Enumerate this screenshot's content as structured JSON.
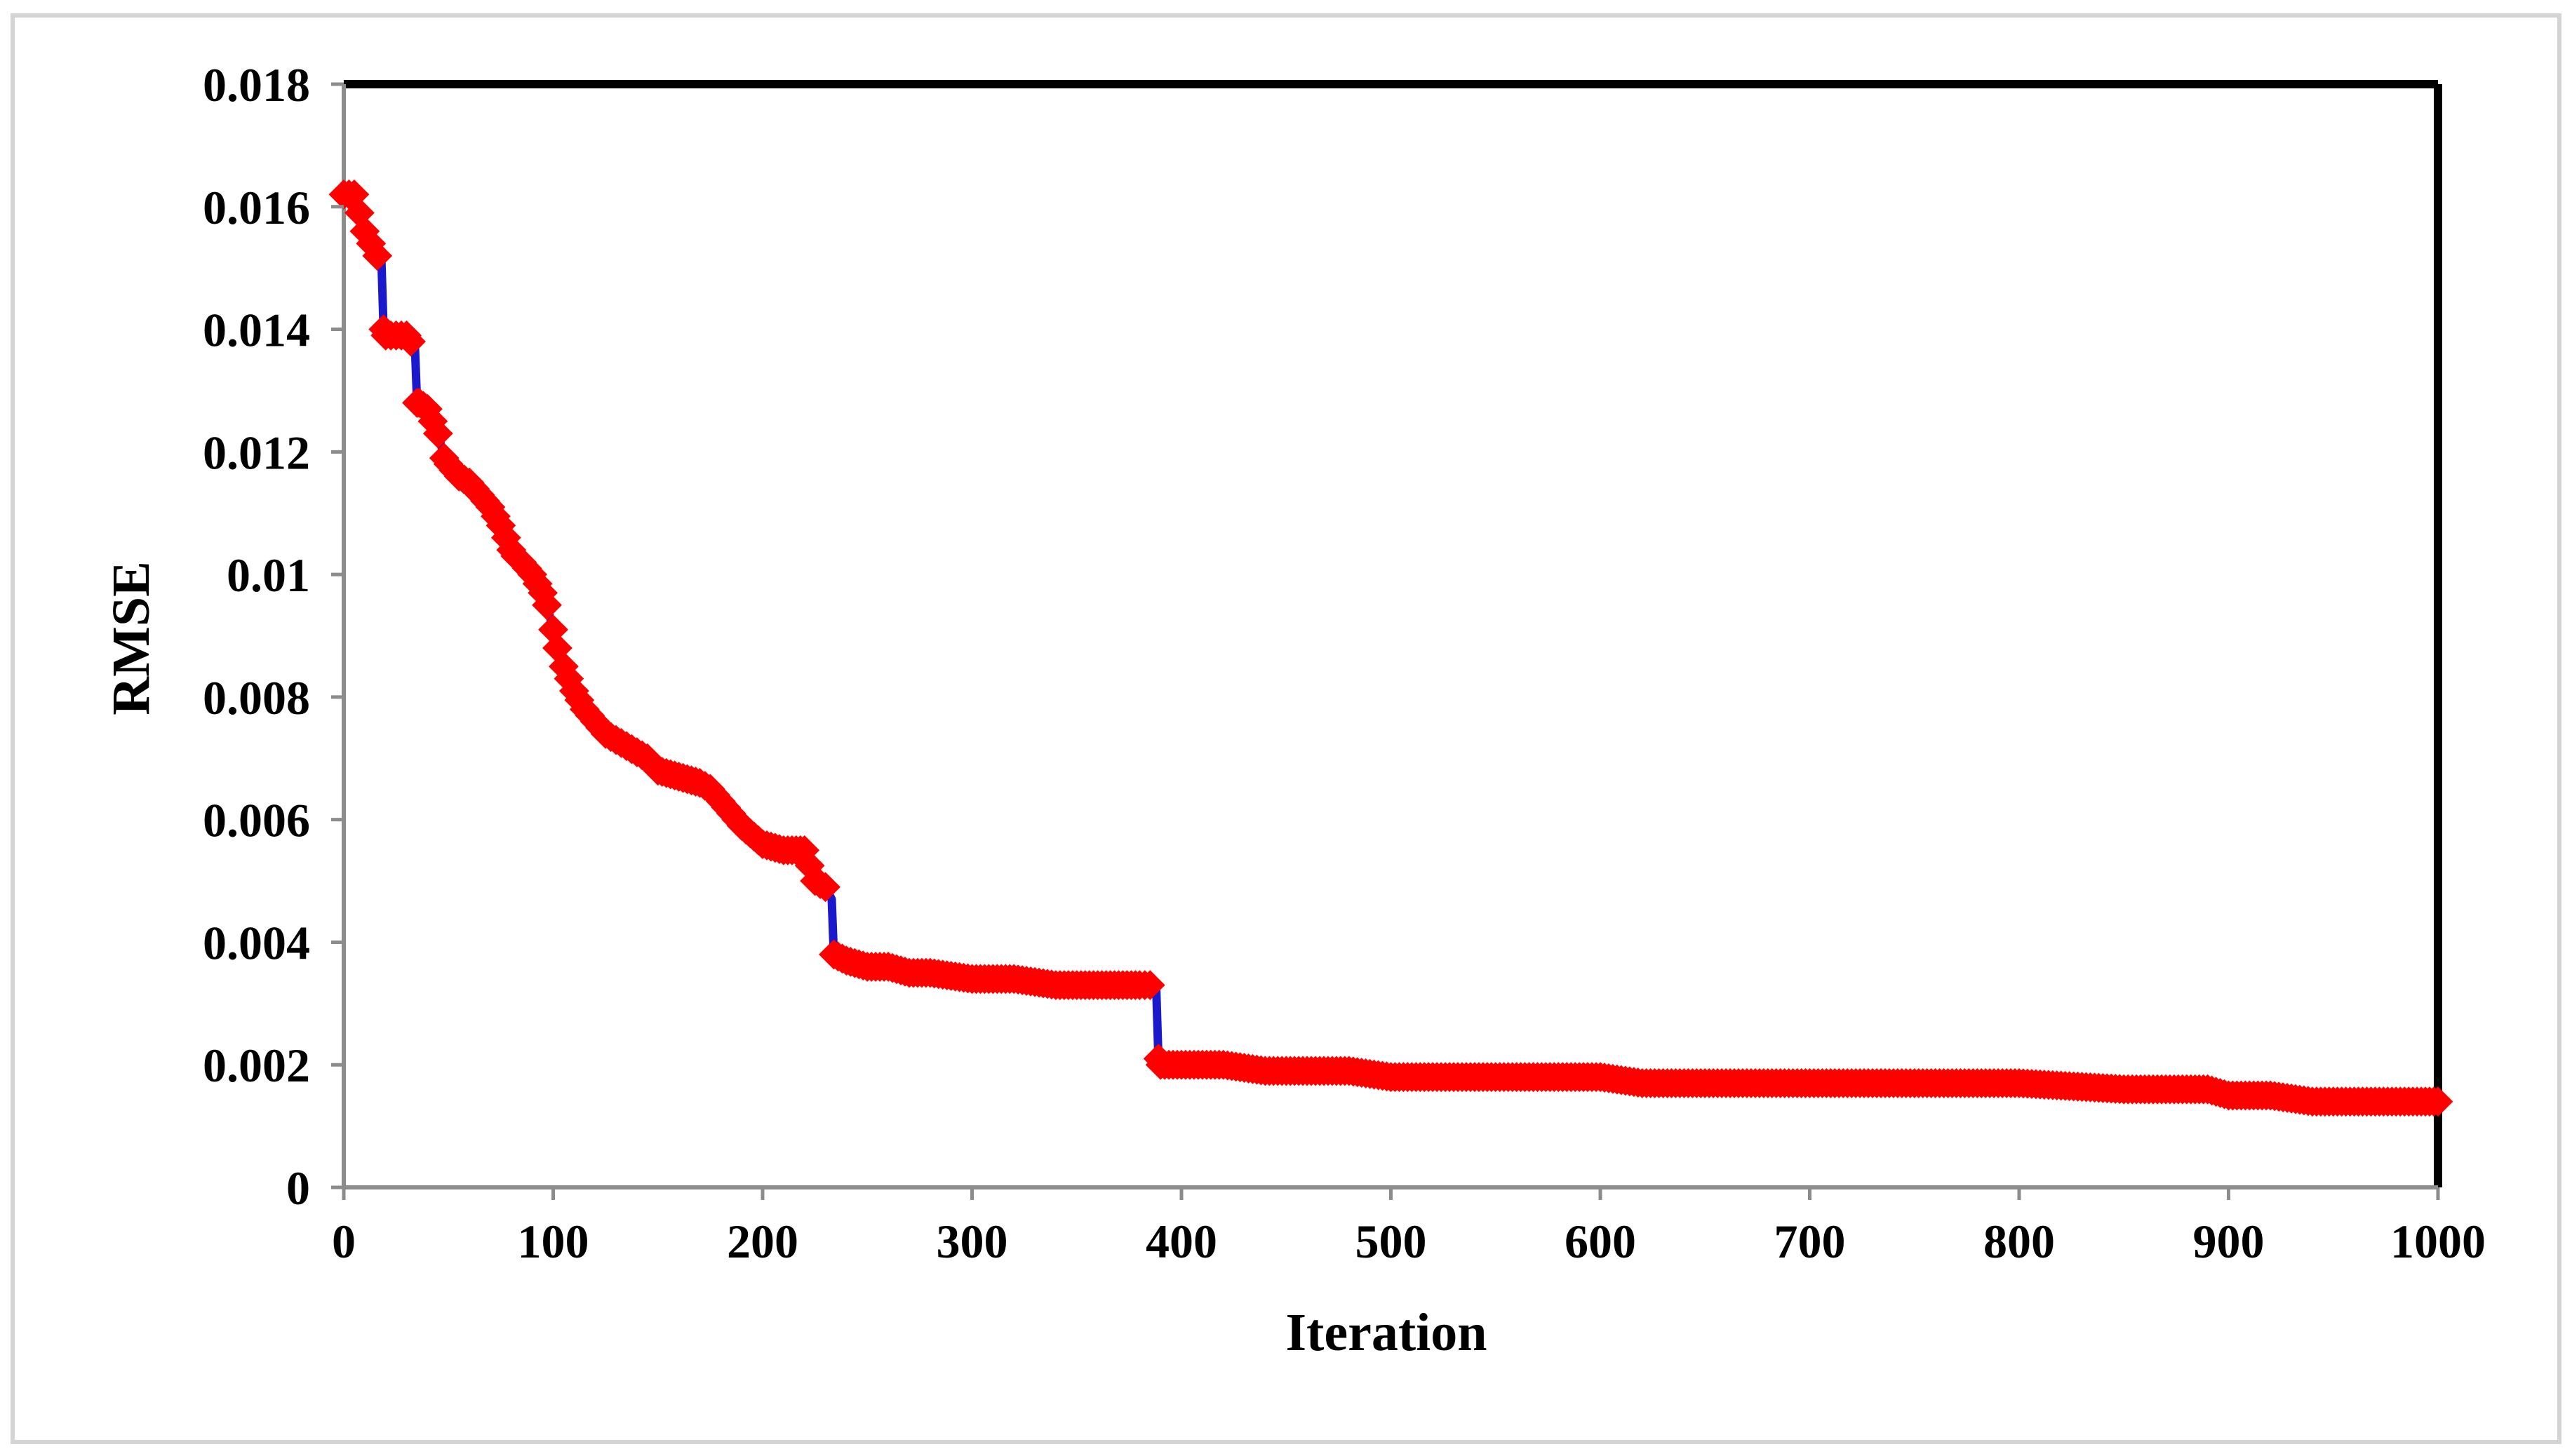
{
  "chart_data": {
    "type": "line",
    "title": "",
    "xlabel": "Iteration",
    "ylabel": "RMSE",
    "xlim": [
      0,
      1000
    ],
    "ylim": [
      0,
      0.018
    ],
    "x_ticks": [
      "0",
      "100",
      "200",
      "300",
      "400",
      "500",
      "600",
      "700",
      "800",
      "900",
      "1000"
    ],
    "y_ticks": [
      "0",
      "0.002",
      "0.004",
      "0.006",
      "0.008",
      "0.01",
      "0.012",
      "0.014",
      "0.016",
      "0.018"
    ],
    "grid": false,
    "legend": "none",
    "line_color": "#1a1acc",
    "marker_color": "#ff0000",
    "marker": "diamond",
    "series": [
      {
        "x": [
          0,
          5,
          10,
          13,
          16,
          18,
          19,
          20,
          25,
          30,
          32,
          34,
          35,
          36,
          40,
          45,
          48,
          50,
          55,
          60,
          65,
          70,
          75,
          80,
          82,
          85,
          90,
          95,
          97,
          100,
          102,
          105,
          110,
          115,
          120,
          125,
          130,
          135,
          140,
          145,
          150,
          160,
          170,
          175,
          180,
          185,
          190,
          200,
          210,
          220,
          225,
          230,
          233,
          234,
          240,
          250,
          260,
          270,
          280,
          300,
          320,
          340,
          360,
          380,
          385,
          388,
          389,
          390,
          400,
          420,
          440,
          460,
          480,
          500,
          550,
          600,
          620,
          650,
          700,
          750,
          800,
          850,
          880,
          890,
          900,
          920,
          940,
          960,
          980,
          1000
        ],
        "y": [
          0.0162,
          0.0162,
          0.0156,
          0.0154,
          0.0152,
          0.0151,
          0.014,
          0.0139,
          0.0139,
          0.0139,
          0.0138,
          0.0137,
          0.0128,
          0.0128,
          0.0127,
          0.0123,
          0.0119,
          0.0118,
          0.0116,
          0.0115,
          0.0113,
          0.0111,
          0.0108,
          0.0104,
          0.0103,
          0.0102,
          0.01,
          0.0097,
          0.0095,
          0.0091,
          0.0088,
          0.0085,
          0.0081,
          0.0078,
          0.0076,
          0.0074,
          0.0073,
          0.0072,
          0.0071,
          0.007,
          0.0068,
          0.0067,
          0.0066,
          0.0065,
          0.0063,
          0.0061,
          0.0059,
          0.0056,
          0.0055,
          0.0055,
          0.005,
          0.0049,
          0.0047,
          0.0038,
          0.0037,
          0.0036,
          0.0036,
          0.0035,
          0.0035,
          0.0034,
          0.0034,
          0.0033,
          0.0033,
          0.0033,
          0.0033,
          0.0032,
          0.0021,
          0.002,
          0.002,
          0.002,
          0.0019,
          0.0019,
          0.0019,
          0.0018,
          0.0018,
          0.0018,
          0.0017,
          0.0017,
          0.0017,
          0.0017,
          0.0017,
          0.0016,
          0.0016,
          0.0016,
          0.0015,
          0.0015,
          0.0014,
          0.0014,
          0.0014,
          0.0014
        ]
      }
    ]
  }
}
